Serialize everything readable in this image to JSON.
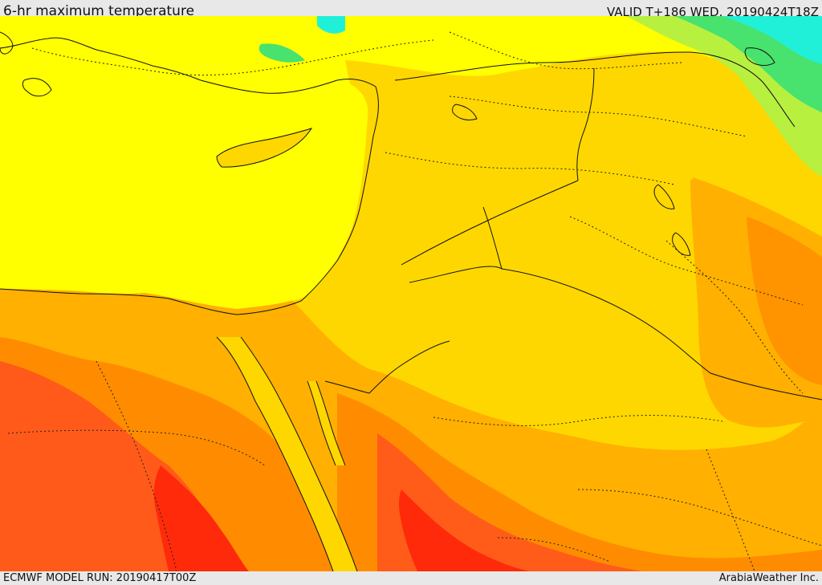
{
  "header": {
    "title": "6-hr maximum temperature",
    "valid": "VALID T+186 WED. 20190424T18Z"
  },
  "footer": {
    "model_run": "ECMWF MODEL RUN: 20190417T00Z",
    "credit": "ArabiaWeather Inc."
  },
  "colors": {
    "light_yellow": "#ffff00",
    "gold": "#ffd700",
    "orange_light": "#ffb000",
    "orange": "#ff8c00",
    "orange_red": "#ff5a1a",
    "red": "#ff2a0a",
    "green": "#48e26e",
    "cyan": "#20f0d8",
    "lime": "#b8f040"
  }
}
